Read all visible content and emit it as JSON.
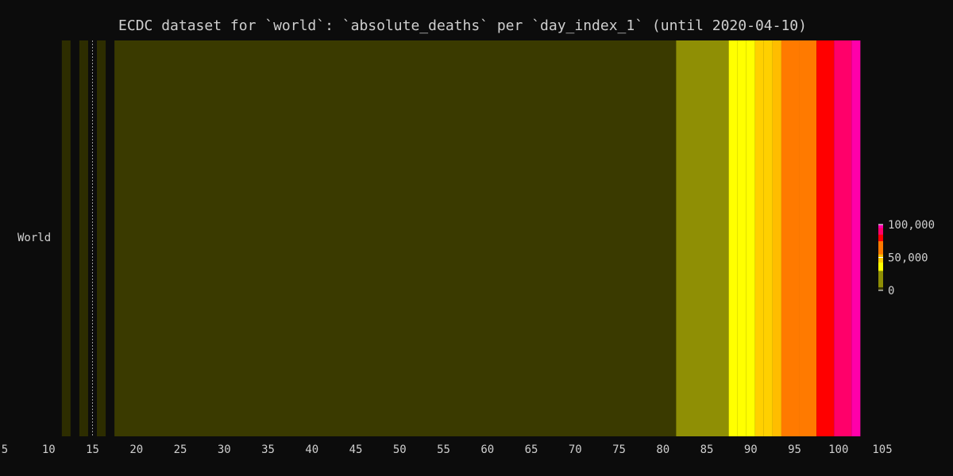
{
  "chart_data": {
    "type": "heatmap",
    "title": "ECDC dataset for `world`: `absolute_deaths` per `day_index_1` (until 2020-04-10)",
    "rows": [
      "World"
    ],
    "xlim": [
      5,
      105
    ],
    "x_ticks": [
      "5",
      "10",
      "15",
      "20",
      "25",
      "30",
      "35",
      "40",
      "45",
      "50",
      "55",
      "60",
      "65",
      "70",
      "75",
      "80",
      "85",
      "90",
      "95",
      "100",
      "105"
    ],
    "colorbar": {
      "range": [
        0,
        100000
      ],
      "ticks": [
        "0",
        "50,000",
        "100,000"
      ],
      "tick_values": [
        0,
        50000,
        100000
      ]
    },
    "marker_x": 15,
    "cells": [
      {
        "start": 11.5,
        "end": 12.5,
        "value": 1
      },
      {
        "start": 13.5,
        "end": 14.5,
        "value": 1
      },
      {
        "start": 15.5,
        "end": 16.5,
        "value": 1
      },
      {
        "start": 17.5,
        "end": 81.5,
        "value": 1000
      },
      {
        "start": 81.5,
        "end": 87.5,
        "value": 14000
      },
      {
        "start": 87.5,
        "end": 88.5,
        "value": 35000
      },
      {
        "start": 88.5,
        "end": 89.5,
        "value": 39000
      },
      {
        "start": 89.5,
        "end": 90.5,
        "value": 41000
      },
      {
        "start": 90.5,
        "end": 91.5,
        "value": 45000
      },
      {
        "start": 91.5,
        "end": 92.5,
        "value": 48000
      },
      {
        "start": 92.5,
        "end": 93.5,
        "value": 52000
      },
      {
        "start": 93.5,
        "end": 95.5,
        "value": 60000
      },
      {
        "start": 95.5,
        "end": 97.5,
        "value": 68000
      },
      {
        "start": 97.5,
        "end": 99.5,
        "value": 78000
      },
      {
        "start": 99.5,
        "end": 101.5,
        "value": 90000
      },
      {
        "start": 101.5,
        "end": 102.5,
        "value": 98000
      }
    ],
    "colors": {
      "background": "#0c0c0c",
      "text": "#cfcfcf",
      "stops": [
        "#2d2d00",
        "#3a3a00",
        "#8f8f05",
        "#ffff00",
        "#ffd000",
        "#ffbd00",
        "#ff7a00",
        "#ff0000",
        "#ff006a",
        "#ff00aa"
      ]
    }
  }
}
